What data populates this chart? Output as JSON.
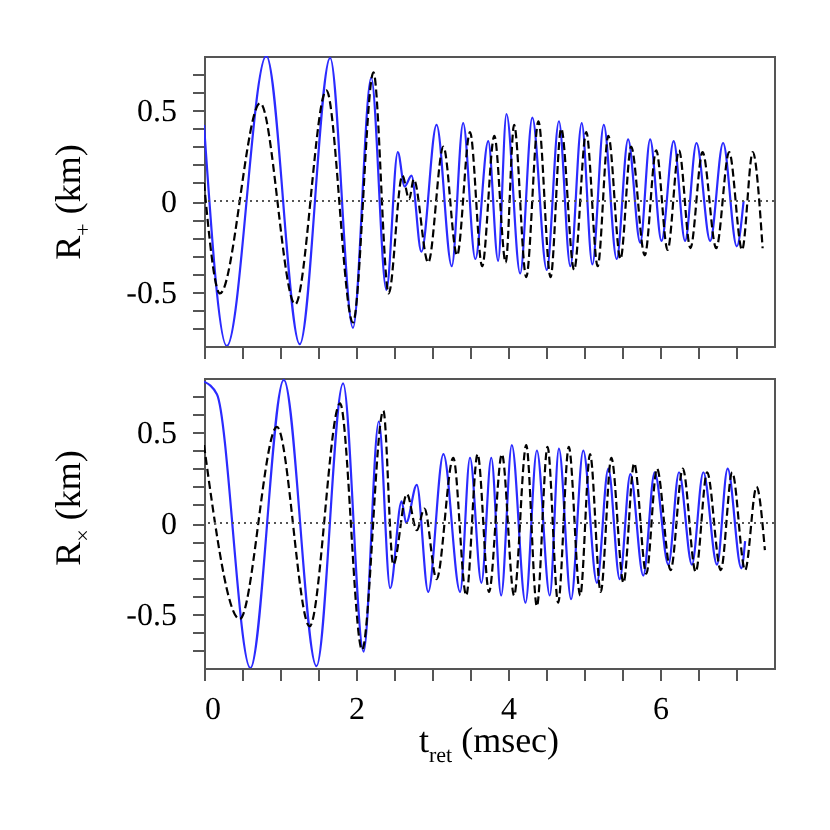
{
  "chart_data": [
    {
      "type": "line",
      "ylabel": "R$_{+}$ (km)",
      "tick_labels": "y",
      "xlim": [
        0,
        7.5
      ],
      "xticks": [
        0,
        {
          "value": 0.5,
          "label": null
        },
        {
          "value": 1,
          "label": null
        },
        {
          "value": 1.5,
          "label": null
        },
        2,
        {
          "value": 2.5,
          "label": null
        },
        {
          "value": 3,
          "label": null
        },
        {
          "value": 3.5,
          "label": null
        },
        4,
        {
          "value": 4.5,
          "label": null
        },
        {
          "value": 5,
          "label": null
        },
        {
          "value": 5.5,
          "label": null
        },
        6,
        {
          "value": 6.5,
          "label": null
        },
        {
          "value": 7,
          "label": null
        }
      ],
      "ylim": [
        -0.8,
        0.8
      ],
      "yticks": [
        {
          "value": -0.7,
          "label": null
        },
        {
          "value": -0.6,
          "label": null
        },
        -0.5,
        {
          "value": -0.4,
          "label": null
        },
        {
          "value": -0.3,
          "label": null
        },
        {
          "value": -0.2,
          "label": null
        },
        {
          "value": -0.1,
          "label": null
        },
        0,
        {
          "value": 0.1,
          "label": null
        },
        {
          "value": 0.2,
          "label": null
        },
        {
          "value": 0.3,
          "label": null
        },
        {
          "value": 0.4,
          "label": null
        },
        0.5,
        {
          "value": 0.6,
          "label": null
        },
        {
          "value": 0.7,
          "label": null
        }
      ],
      "ref_lines": [
        {
          "axis": "y",
          "value": 0,
          "color": "#555555",
          "line_style": "dotted"
        }
      ],
      "series": [
        {
          "color": "#2b2bff",
          "line_style": "solid",
          "x": [
            0,
            0.3,
            0.82,
            1.26,
            1.66,
            1.96,
            2.2,
            2.4,
            2.55,
            2.64,
            2.73,
            2.86,
            3.06,
            3.26,
            3.41,
            3.57,
            3.74,
            3.87,
            3.98,
            4.16,
            4.32,
            4.51,
            4.67,
            4.82,
            4.97,
            5.11,
            5.26,
            5.43,
            5.58,
            5.74,
            5.87,
            6.02,
            6.18,
            6.33,
            6.48,
            6.66,
            6.83,
            7.01,
            7.1
          ],
          "values": [
            0.42,
            -0.8,
            0.8,
            -0.79,
            0.79,
            -0.7,
            0.68,
            -0.49,
            0.27,
            0.08,
            0.14,
            -0.28,
            0.42,
            -0.36,
            0.43,
            -0.32,
            0.33,
            -0.33,
            0.48,
            -0.4,
            0.46,
            -0.38,
            0.44,
            -0.36,
            0.43,
            -0.35,
            0.42,
            -0.32,
            0.34,
            -0.23,
            0.34,
            -0.22,
            0.33,
            -0.22,
            0.32,
            -0.22,
            0.32,
            -0.25,
            0.0
          ]
        },
        {
          "color": "#000000",
          "line_style": "dashed",
          "x": [
            0,
            0.21,
            0.74,
            1.2,
            1.61,
            1.96,
            2.23,
            2.43,
            2.61,
            2.7,
            2.76,
            2.95,
            3.15,
            3.33,
            3.5,
            3.66,
            3.82,
            3.97,
            4.08,
            4.24,
            4.4,
            4.56,
            4.7,
            4.87,
            5.03,
            5.18,
            5.32,
            5.48,
            5.62,
            5.8,
            5.95,
            6.1,
            6.25,
            6.4,
            6.56,
            6.74,
            6.91,
            7.08,
            7.22,
            7.35
          ],
          "values": [
            0.1,
            -0.51,
            0.54,
            -0.57,
            0.61,
            -0.67,
            0.71,
            -0.51,
            0.14,
            0.01,
            0.12,
            -0.34,
            0.3,
            -0.3,
            0.38,
            -0.36,
            0.36,
            -0.34,
            0.42,
            -0.42,
            0.44,
            -0.42,
            0.4,
            -0.38,
            0.38,
            -0.36,
            0.36,
            -0.32,
            0.3,
            -0.3,
            0.28,
            -0.27,
            0.28,
            -0.26,
            0.27,
            -0.26,
            0.27,
            -0.27,
            0.27,
            -0.26
          ]
        }
      ]
    },
    {
      "type": "line",
      "xlabel": "t$_{ret}$ (msec)",
      "ylabel": "R$_{×}$ (km)",
      "xlim": [
        0,
        7.5
      ],
      "xticks": [
        0,
        {
          "value": 0.5,
          "label": null
        },
        {
          "value": 1,
          "label": null
        },
        {
          "value": 1.5,
          "label": null
        },
        2,
        {
          "value": 2.5,
          "label": null
        },
        {
          "value": 3,
          "label": null
        },
        {
          "value": 3.5,
          "label": null
        },
        4,
        {
          "value": 4.5,
          "label": null
        },
        {
          "value": 5,
          "label": null
        },
        {
          "value": 5.5,
          "label": null
        },
        6,
        {
          "value": 6.5,
          "label": null
        },
        {
          "value": 7,
          "label": null
        }
      ],
      "ylim": [
        -0.8,
        0.8
      ],
      "yticks": [
        {
          "value": -0.7,
          "label": null
        },
        {
          "value": -0.6,
          "label": null
        },
        -0.5,
        {
          "value": -0.4,
          "label": null
        },
        {
          "value": -0.3,
          "label": null
        },
        {
          "value": -0.2,
          "label": null
        },
        {
          "value": -0.1,
          "label": null
        },
        0,
        {
          "value": 0.1,
          "label": null
        },
        {
          "value": 0.2,
          "label": null
        },
        {
          "value": 0.3,
          "label": null
        },
        {
          "value": 0.4,
          "label": null
        },
        0.5,
        {
          "value": 0.6,
          "label": null
        },
        {
          "value": 0.7,
          "label": null
        }
      ],
      "ref_lines": [
        {
          "axis": "y",
          "value": 0,
          "color": "#555555",
          "line_style": "dotted"
        }
      ],
      "series": [
        {
          "color": "#2b2bff",
          "line_style": "solid",
          "x": [
            0,
            0.17,
            0.61,
            1.05,
            1.48,
            1.83,
            2.1,
            2.3,
            2.45,
            2.6,
            2.66,
            2.8,
            2.95,
            3.15,
            3.37,
            3.5,
            3.65,
            3.78,
            3.91,
            4.05,
            4.23,
            4.38,
            4.55,
            4.67,
            4.83,
            4.99,
            5.17,
            5.32,
            5.47,
            5.61,
            5.78,
            5.93,
            6.11,
            6.25,
            6.42,
            6.57,
            6.75,
            6.89,
            7.07,
            7.12
          ],
          "values": [
            0.78,
            0.71,
            -0.8,
            0.79,
            -0.79,
            0.77,
            -0.71,
            0.56,
            -0.36,
            0.12,
            0.0,
            0.21,
            -0.38,
            0.38,
            -0.38,
            0.36,
            -0.33,
            0.36,
            -0.4,
            0.43,
            -0.44,
            0.4,
            -0.4,
            0.41,
            -0.42,
            0.4,
            -0.33,
            0.3,
            -0.31,
            0.27,
            -0.29,
            0.28,
            -0.23,
            0.28,
            -0.23,
            0.28,
            -0.23,
            0.3,
            -0.25,
            -0.1
          ]
        },
        {
          "color": "#000000",
          "line_style": "dashed",
          "x": [
            0,
            0.47,
            0.96,
            1.39,
            1.79,
            2.08,
            2.36,
            2.49,
            2.67,
            2.8,
            2.9,
            3.06,
            3.28,
            3.45,
            3.6,
            3.75,
            3.92,
            4.08,
            4.24,
            4.38,
            4.52,
            4.66,
            4.8,
            4.95,
            5.08,
            5.22,
            5.36,
            5.52,
            5.66,
            5.82,
            5.96,
            6.14,
            6.3,
            6.47,
            6.62,
            6.8,
            6.95,
            7.12,
            7.27,
            7.38
          ],
          "values": [
            0.43,
            -0.53,
            0.53,
            -0.57,
            0.66,
            -0.7,
            0.62,
            -0.23,
            0.16,
            -0.04,
            0.08,
            -0.31,
            0.36,
            -0.4,
            0.38,
            -0.38,
            0.38,
            -0.4,
            0.43,
            -0.46,
            0.42,
            -0.44,
            0.42,
            -0.4,
            0.38,
            -0.38,
            0.36,
            -0.33,
            0.33,
            -0.28,
            0.3,
            -0.26,
            0.3,
            -0.27,
            0.28,
            -0.26,
            0.28,
            -0.26,
            0.2,
            -0.15
          ]
        }
      ]
    }
  ]
}
